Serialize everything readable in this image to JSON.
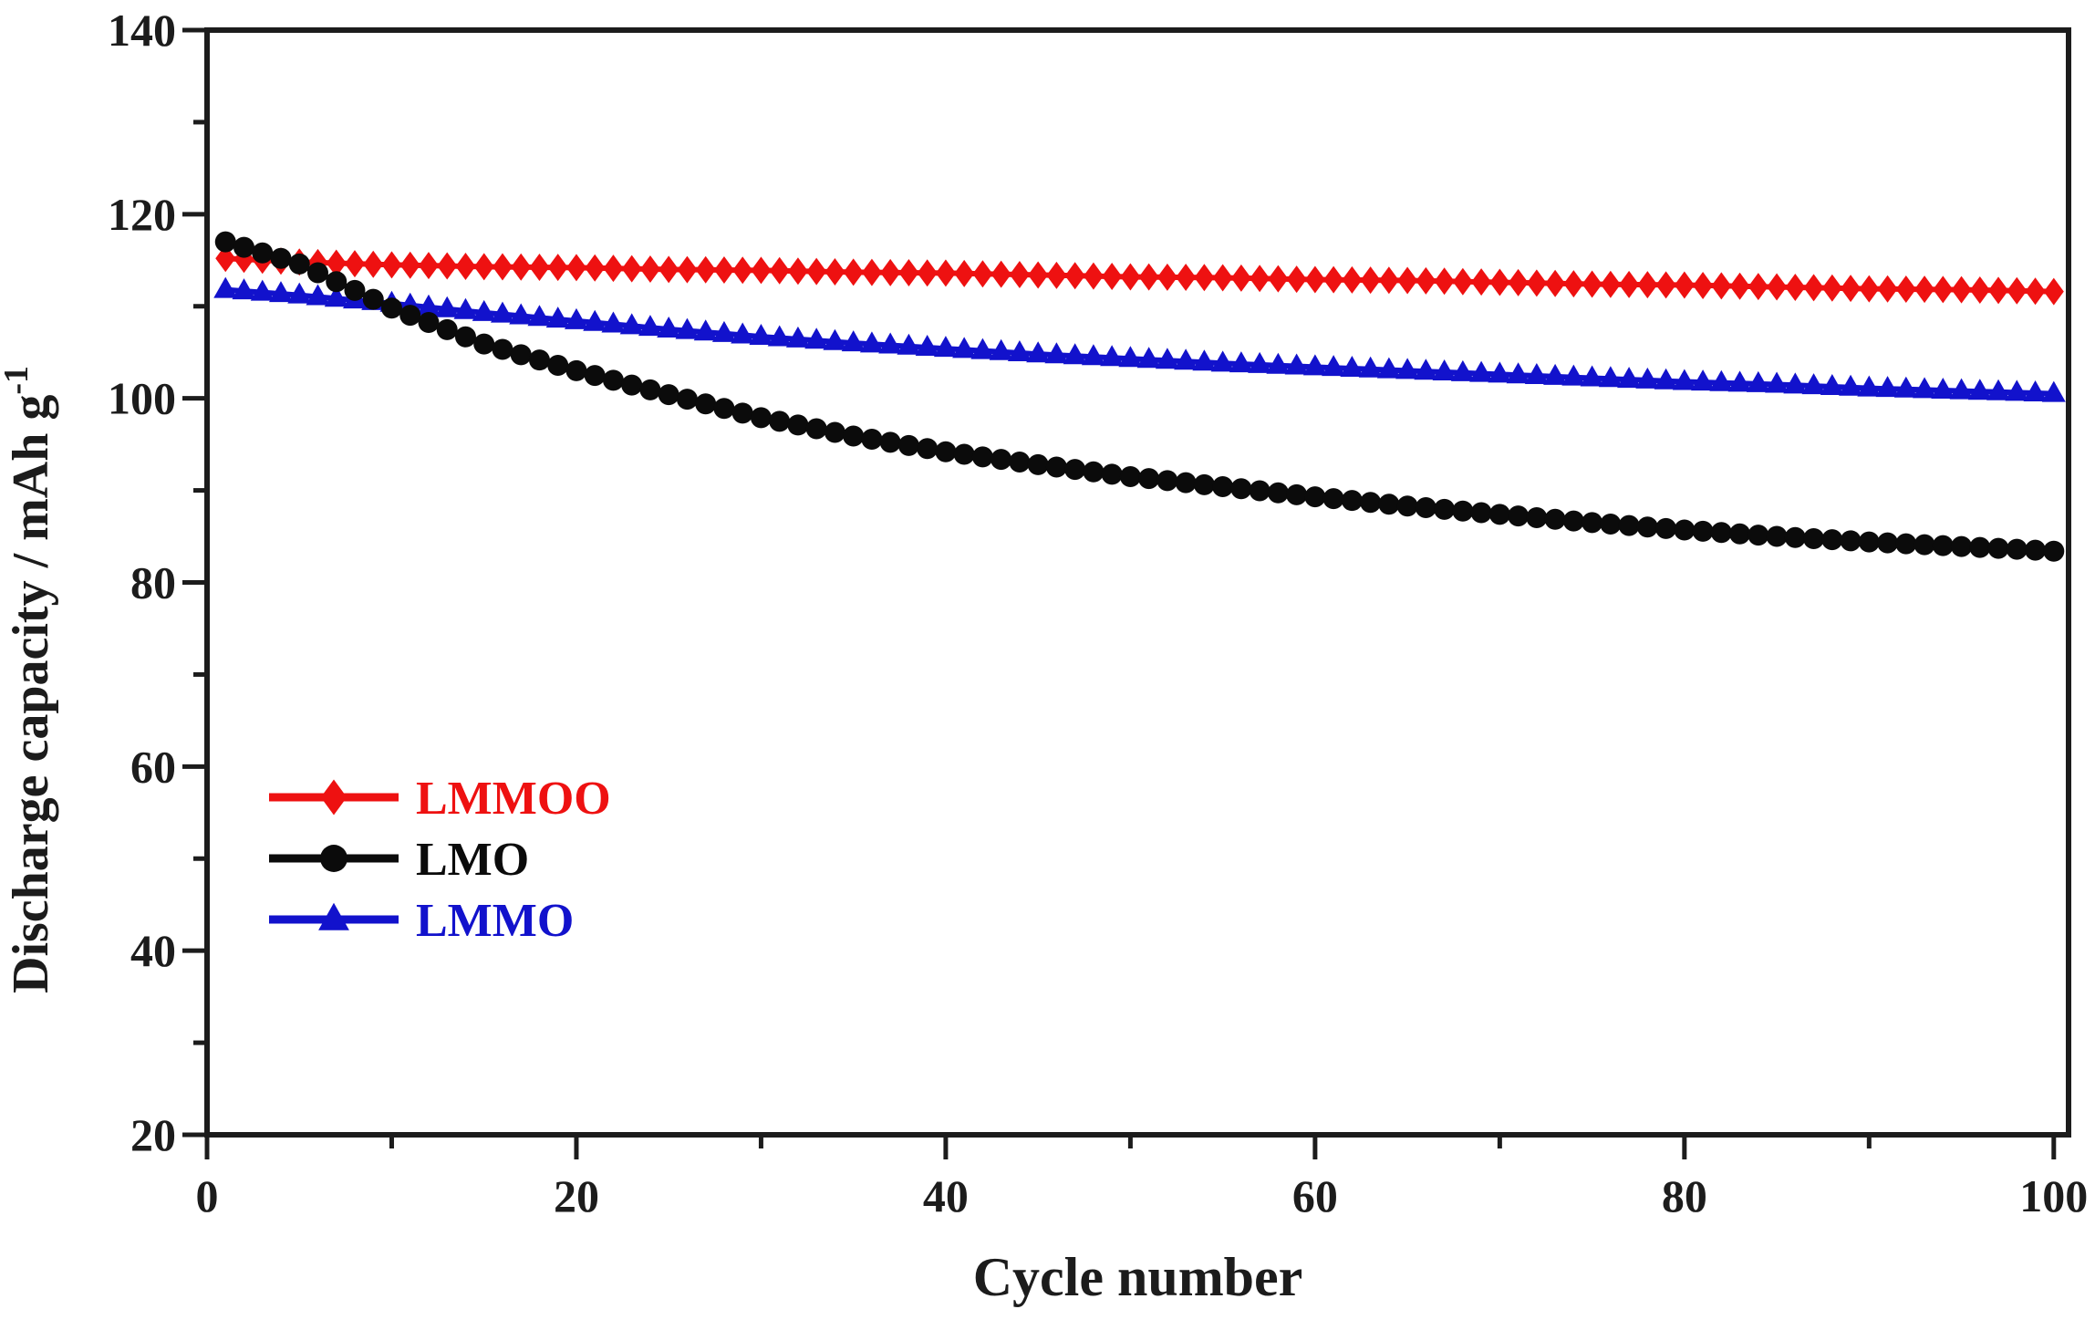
{
  "figure": {
    "background": "#ffffff",
    "axis_color": "#1c1c1c"
  },
  "chart_data": {
    "type": "line",
    "title": "",
    "xlabel": "Cycle number",
    "ylabel": "Discharge capacity / mAh g⁻¹",
    "ylabel_base": "Discharge capacity / mAh g",
    "ylabel_superscript": "-1",
    "xlim": [
      0,
      100.8
    ],
    "ylim": [
      20,
      140
    ],
    "x_major_ticks": [
      0,
      20,
      40,
      60,
      80,
      100
    ],
    "x_minor_ticks": [
      10,
      30,
      50,
      70,
      90
    ],
    "y_major_ticks": [
      20,
      40,
      60,
      80,
      100,
      120,
      140
    ],
    "y_minor_ticks": [
      30,
      50,
      70,
      90,
      110,
      130
    ],
    "grid": false,
    "legend_position": "inside-left-middle",
    "marker_step": 1,
    "series": [
      {
        "name": "LMMOO",
        "color": "#ee1111",
        "marker": "diamond",
        "zorder": 1,
        "x": [
          1,
          5,
          10,
          15,
          20,
          25,
          30,
          35,
          40,
          45,
          50,
          55,
          60,
          65,
          70,
          75,
          80,
          85,
          90,
          95,
          100
        ],
        "values": [
          115.2,
          114.8,
          114.5,
          114.3,
          114.2,
          114.0,
          113.9,
          113.7,
          113.6,
          113.4,
          113.2,
          113.1,
          112.9,
          112.8,
          112.6,
          112.4,
          112.3,
          112.1,
          111.9,
          111.8,
          111.6
        ]
      },
      {
        "name": "LMO",
        "color": "#0b0b0b",
        "marker": "circle",
        "zorder": 3,
        "x": [
          1,
          5,
          10,
          15,
          20,
          25,
          30,
          35,
          40,
          45,
          50,
          55,
          60,
          65,
          70,
          75,
          80,
          85,
          90,
          95,
          100
        ],
        "values": [
          117.0,
          114.6,
          109.8,
          105.9,
          103.0,
          100.4,
          97.9,
          95.9,
          94.2,
          92.8,
          91.5,
          90.4,
          89.3,
          88.3,
          87.4,
          86.5,
          85.7,
          85.0,
          84.4,
          83.9,
          83.4
        ]
      },
      {
        "name": "LMMO",
        "color": "#1212cc",
        "marker": "triangle",
        "zorder": 2,
        "x": [
          1,
          5,
          10,
          15,
          20,
          25,
          30,
          35,
          40,
          45,
          50,
          55,
          60,
          65,
          70,
          75,
          80,
          85,
          90,
          95,
          100
        ],
        "values": [
          111.8,
          111.2,
          110.3,
          109.3,
          108.4,
          107.5,
          106.7,
          106.0,
          105.4,
          104.8,
          104.3,
          103.8,
          103.4,
          103.0,
          102.6,
          102.2,
          101.8,
          101.5,
          101.1,
          100.8,
          100.5
        ]
      }
    ]
  },
  "legend": {
    "items": [
      {
        "label": "LMMOO",
        "color": "#ee1111",
        "marker": "diamond"
      },
      {
        "label": "LMO",
        "color": "#0b0b0b",
        "marker": "circle"
      },
      {
        "label": "LMMO",
        "color": "#1212cc",
        "marker": "triangle"
      }
    ]
  }
}
